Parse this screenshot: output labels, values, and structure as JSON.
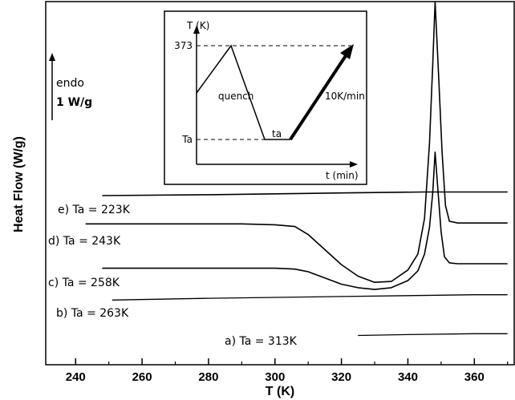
{
  "chart_data": {
    "type": "line",
    "xlabel": "T (K)",
    "ylabel": "Heat Flow (W/g)",
    "xlim": [
      231,
      372
    ],
    "ylim": [
      -0.2,
      3.9
    ],
    "xticks": [
      240,
      260,
      280,
      300,
      320,
      340,
      360
    ],
    "scale_bar": {
      "label_top": "endo",
      "label_bottom": "1 W/g",
      "length": 1.0
    },
    "series": [
      {
        "name": "a) Ta = 313K",
        "label_anchor": [
          297,
          0.13
        ],
        "x": [
          325,
          340,
          360,
          370
        ],
        "y": [
          0.13,
          0.14,
          0.15,
          0.15
        ]
      },
      {
        "name": "b) Ta = 263K",
        "label_anchor": [
          249,
          0.53
        ],
        "x": [
          251,
          280,
          300,
          320,
          340,
          360,
          370
        ],
        "y": [
          0.53,
          0.55,
          0.56,
          0.57,
          0.58,
          0.59,
          0.59
        ]
      },
      {
        "name": "c) Ta = 258K",
        "x": [
          248,
          270,
          290,
          300,
          306,
          310,
          315,
          320,
          325,
          330,
          335,
          340,
          343,
          345,
          346.5,
          347.5,
          348.2,
          349,
          350,
          351,
          352.5,
          355,
          360,
          370
        ],
        "y": [
          0.89,
          0.89,
          0.89,
          0.89,
          0.88,
          0.85,
          0.78,
          0.71,
          0.67,
          0.65,
          0.67,
          0.75,
          0.86,
          1.05,
          1.35,
          1.75,
          2.2,
          1.8,
          1.3,
          1.02,
          0.95,
          0.94,
          0.94,
          0.94
        ]
      },
      {
        "name": "d) Ta = 243K",
        "x": [
          243,
          270,
          290,
          300,
          306,
          310,
          315,
          320,
          325,
          330,
          335,
          340,
          343,
          345,
          346.5,
          347.5,
          348.2,
          349.2,
          350.3,
          351.3,
          352.5,
          355,
          360,
          370
        ],
        "y": [
          1.39,
          1.39,
          1.39,
          1.38,
          1.36,
          1.27,
          1.1,
          0.93,
          0.8,
          0.73,
          0.74,
          0.87,
          1.05,
          1.45,
          2.3,
          3.2,
          3.9,
          3.1,
          2.2,
          1.6,
          1.42,
          1.4,
          1.4,
          1.4
        ]
      },
      {
        "name": "e) Ta = 223K",
        "label_anchor": [
          235,
          1.71
        ],
        "x": [
          248,
          280,
          320,
          345,
          370
        ],
        "y": [
          1.71,
          1.72,
          1.74,
          1.75,
          1.75
        ]
      }
    ],
    "inset": {
      "ylabel": "T (K)",
      "xlabel": "t (min)",
      "yticks": [
        "373",
        "Ta"
      ],
      "annotations": [
        "quench",
        "ta",
        "10K/min"
      ]
    }
  }
}
